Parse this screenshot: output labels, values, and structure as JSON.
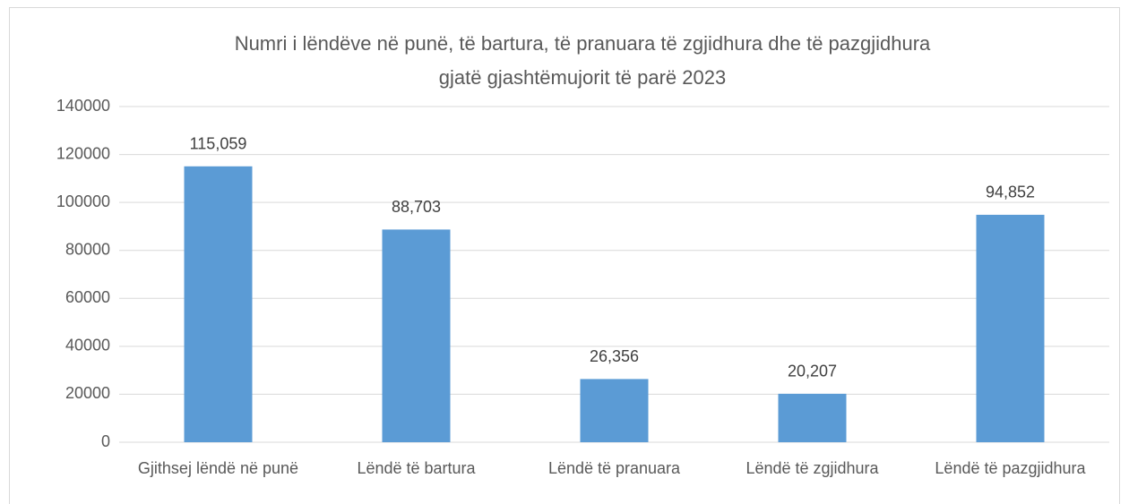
{
  "chart_data": {
    "type": "bar",
    "title": [
      "Numri i lëndëve në punë, të bartura, të pranuara të zgjidhura dhe të pazgjidhura",
      "gjatë gjashtëmujorit të parë 2023"
    ],
    "categories": [
      "Gjithsej lëndë në punë",
      "Lëndë të bartura",
      "Lëndë të pranuara",
      "Lëndë të zgjidhura",
      "Lëndë të pazgjidhura"
    ],
    "values": [
      115059,
      88703,
      26356,
      20207,
      94852
    ],
    "value_labels": [
      "115,059",
      "88,703",
      "26,356",
      "20,207",
      "94,852"
    ],
    "color": "#5b9bd5",
    "ylim": [
      0,
      140000
    ],
    "yticks": [
      0,
      20000,
      40000,
      60000,
      80000,
      100000,
      120000,
      140000
    ],
    "grid": true
  }
}
